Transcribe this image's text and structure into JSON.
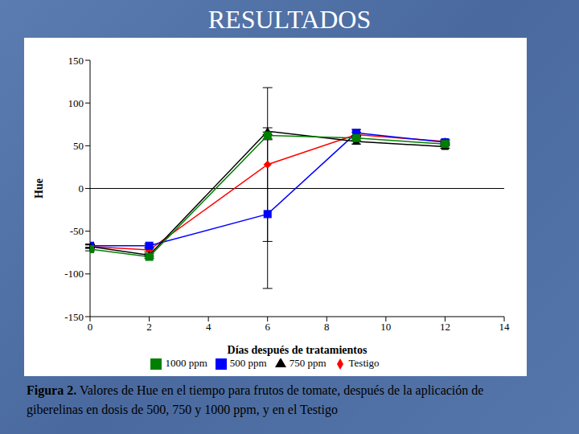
{
  "chart_data": {
    "type": "line",
    "title": "RESULTADOS",
    "caption_label": "Figura 2.",
    "caption": "Valores de Hue en el tiempo para frutos de tomate, después de la aplicación de giberelinas en dosis de 500, 750 y 1000 ppm, y en el Testigo",
    "x_label": "Días después de tratamientos",
    "y_label": "Hue",
    "x": [
      0,
      2,
      6,
      9,
      12
    ],
    "xlim": [
      0,
      14
    ],
    "xticks": [
      0,
      2,
      4,
      6,
      8,
      10,
      12,
      14
    ],
    "ylim": [
      -150,
      150
    ],
    "yticks": [
      -150,
      -100,
      -50,
      0,
      50,
      100,
      150
    ],
    "grid": false,
    "legend": "bottom",
    "series": [
      {
        "name": "Testigo",
        "color": "#ff0000",
        "marker": "diamond",
        "values": [
          -68,
          -72,
          28,
          63,
          55
        ],
        "errors": [
          2,
          2,
          90,
          3,
          2
        ]
      },
      {
        "name": "500 ppm",
        "color": "#0000ff",
        "marker": "square",
        "values": [
          -67,
          -67,
          -30,
          65,
          54
        ],
        "errors": [
          2,
          2,
          87,
          4,
          2
        ]
      },
      {
        "name": "750 ppm",
        "color": "#000000",
        "marker": "triangle",
        "values": [
          -68,
          -78,
          67,
          55,
          49
        ],
        "errors": [
          2,
          2,
          4,
          3,
          2
        ]
      },
      {
        "name": "1000 ppm",
        "color": "#008000",
        "marker": "square",
        "values": [
          -71,
          -80,
          62,
          59,
          52
        ],
        "errors": [
          2,
          2,
          4,
          3,
          2
        ]
      }
    ]
  }
}
